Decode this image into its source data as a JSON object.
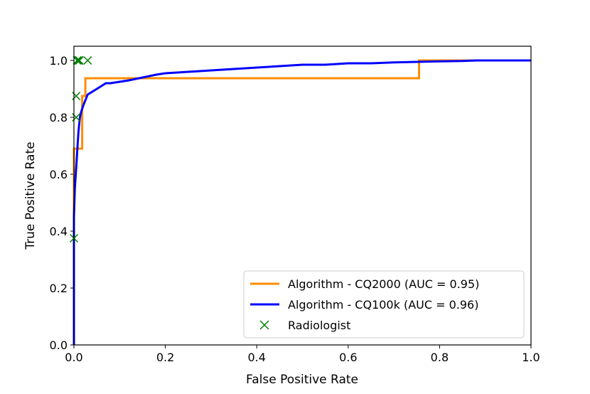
{
  "chart_data": {
    "type": "line",
    "title": "",
    "xlabel": "False Positive Rate",
    "ylabel": "True Positive Rate",
    "xlim": [
      0.0,
      1.0
    ],
    "ylim": [
      0.0,
      1.05
    ],
    "xticks": [
      "0.0",
      "0.2",
      "0.4",
      "0.6",
      "0.8",
      "1.0"
    ],
    "yticks": [
      "0.0",
      "0.2",
      "0.4",
      "0.6",
      "0.8",
      "1.0"
    ],
    "grid": false,
    "legend_position": "lower-right",
    "series": [
      {
        "name": "Algorithm - CQ2000 (AUC = 0.95)",
        "color": "#ff8c00",
        "x": [
          0.0,
          0.0,
          0.002,
          0.002,
          0.018,
          0.018,
          0.025,
          0.025,
          0.755,
          0.755,
          1.0
        ],
        "y": [
          0.0,
          0.69,
          0.69,
          0.69,
          0.69,
          0.875,
          0.875,
          0.9375,
          0.9375,
          1.0,
          1.0
        ]
      },
      {
        "name": "Algorithm - CQ100k (AUC = 0.96)",
        "color": "#0000ff",
        "x": [
          0.0,
          0.0,
          0.002,
          0.004,
          0.006,
          0.008,
          0.01,
          0.013,
          0.016,
          0.02,
          0.025,
          0.03,
          0.035,
          0.04,
          0.05,
          0.06,
          0.07,
          0.08,
          0.1,
          0.12,
          0.15,
          0.18,
          0.2,
          0.25,
          0.3,
          0.35,
          0.4,
          0.45,
          0.5,
          0.55,
          0.6,
          0.65,
          0.7,
          0.75,
          0.8,
          0.85,
          0.88,
          0.9,
          1.0
        ],
        "y": [
          0.0,
          0.45,
          0.55,
          0.6,
          0.65,
          0.7,
          0.75,
          0.8,
          0.82,
          0.84,
          0.86,
          0.88,
          0.885,
          0.89,
          0.9,
          0.91,
          0.92,
          0.92,
          0.925,
          0.93,
          0.94,
          0.95,
          0.955,
          0.96,
          0.965,
          0.97,
          0.975,
          0.98,
          0.985,
          0.985,
          0.99,
          0.99,
          0.993,
          0.995,
          0.997,
          0.998,
          1.0,
          1.0,
          1.0
        ]
      },
      {
        "name": "Radiologist",
        "color": "#008000",
        "marker": "x",
        "x": [
          0.0,
          0.005,
          0.005,
          0.007,
          0.01,
          0.012,
          0.03
        ],
        "y": [
          0.375,
          0.8,
          0.875,
          1.0,
          1.0,
          1.0,
          1.0
        ]
      }
    ]
  }
}
